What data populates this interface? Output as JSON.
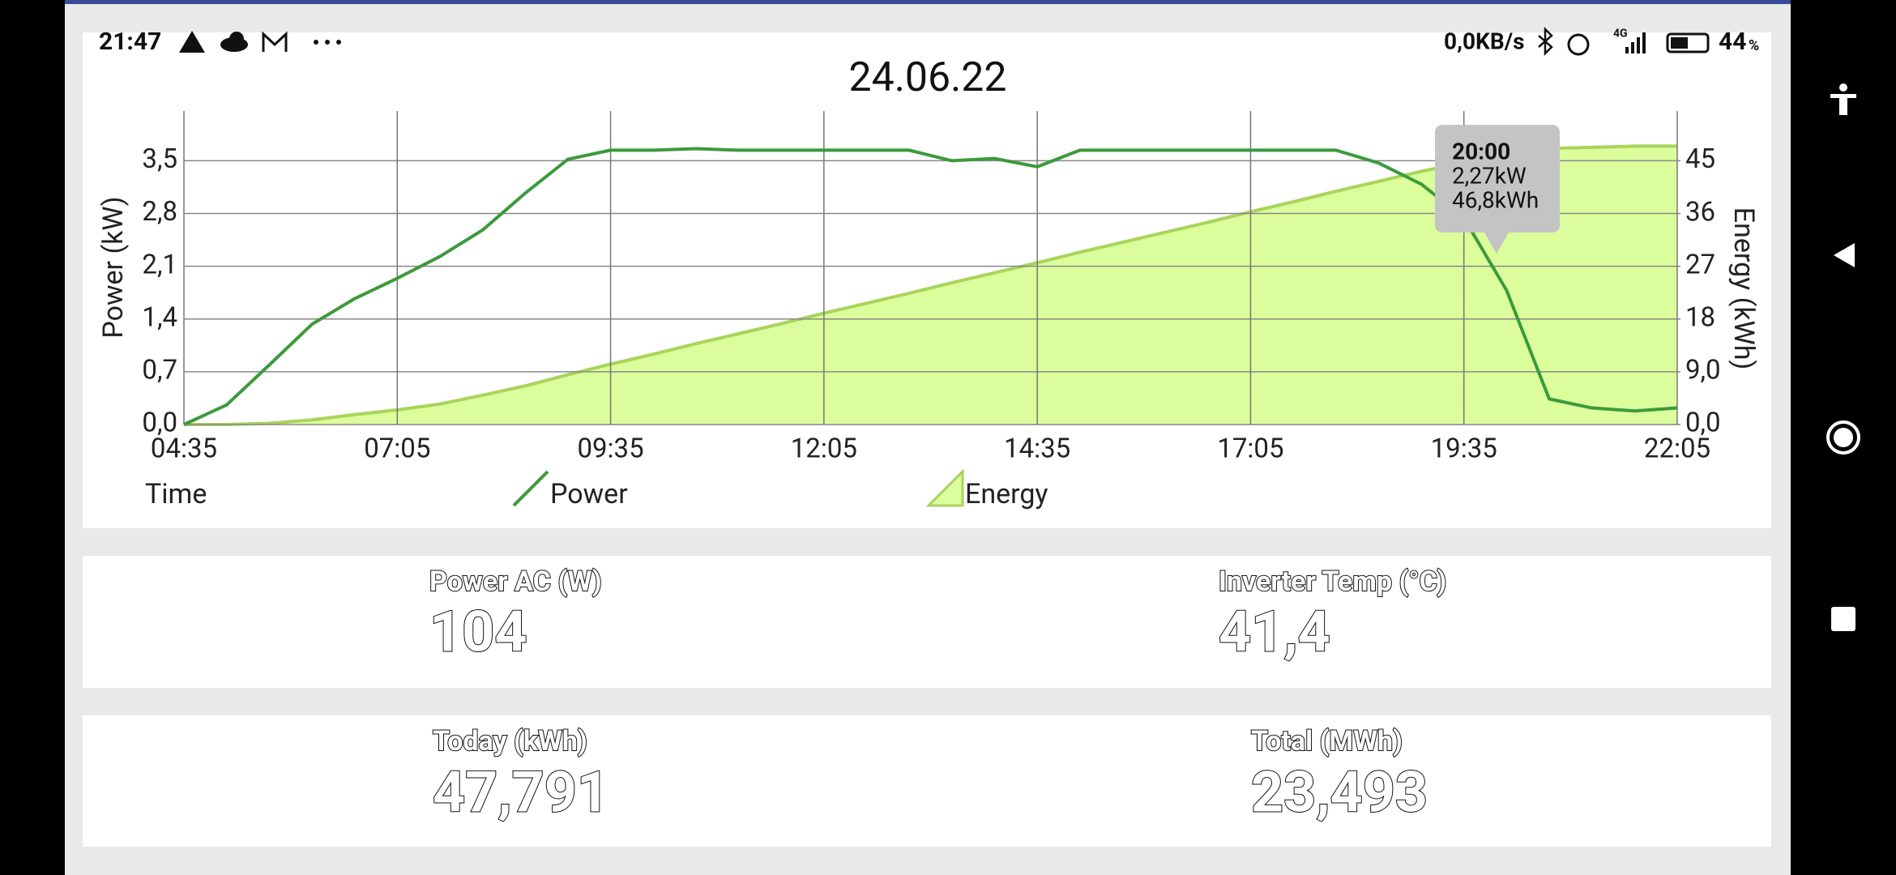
{
  "status_bar": {
    "time": "21:47",
    "network_speed": "0,0KB/s",
    "network_type": "4G",
    "battery": "44",
    "battery_unit": "%"
  },
  "chart_data": {
    "type": "line",
    "title": "24.06.22",
    "x_label": "Time",
    "y_label": "Power (kW)",
    "y2_label": "Energy (kWh)",
    "x": [
      "04:35",
      "05:05",
      "05:35",
      "06:05",
      "06:35",
      "07:05",
      "07:35",
      "08:05",
      "08:35",
      "09:05",
      "09:35",
      "10:05",
      "10:35",
      "11:05",
      "11:35",
      "12:05",
      "12:35",
      "13:05",
      "13:35",
      "14:05",
      "14:35",
      "15:05",
      "15:35",
      "16:05",
      "16:35",
      "17:05",
      "17:35",
      "18:05",
      "18:35",
      "19:05",
      "19:35",
      "20:05",
      "20:35",
      "21:05",
      "21:35",
      "22:05"
    ],
    "series": [
      {
        "name": "Power",
        "type": "line",
        "color": "#3c9a3c",
        "values": [
          0,
          0.26,
          0.79,
          1.33,
          1.67,
          1.94,
          2.23,
          2.58,
          3.07,
          3.52,
          3.64,
          3.64,
          3.66,
          3.64,
          3.64,
          3.64,
          3.64,
          3.64,
          3.5,
          3.53,
          3.42,
          3.64,
          3.64,
          3.64,
          3.64,
          3.64,
          3.64,
          3.64,
          3.47,
          3.19,
          2.74,
          1.78,
          0.34,
          0.22,
          0.18,
          0.22
        ]
      },
      {
        "name": "Energy",
        "type": "area",
        "color": "#a8d45a",
        "fill": "#dcfd9c",
        "axis": "y2",
        "values": [
          0,
          0,
          0.2,
          0.8,
          1.7,
          2.5,
          3.5,
          5.0,
          6.6,
          8.5,
          10.3,
          12.0,
          13.8,
          15.5,
          17.2,
          19.0,
          20.7,
          22.4,
          24.2,
          25.9,
          27.6,
          29.4,
          31.1,
          32.8,
          34.5,
          36.3,
          38.0,
          39.8,
          41.5,
          43.2,
          44.7,
          46.4,
          47.1,
          47.3,
          47.5,
          47.5
        ]
      }
    ],
    "xlim": [
      "04:35",
      "22:05"
    ],
    "xticks": [
      "04:35",
      "07:05",
      "09:35",
      "12:05",
      "14:35",
      "17:05",
      "19:35",
      "22:05"
    ],
    "ylim": [
      0,
      4.16
    ],
    "yticks": [
      {
        "value": 0,
        "label": "0,0"
      },
      {
        "value": 0.7,
        "label": "0,7"
      },
      {
        "value": 1.4,
        "label": "1,4"
      },
      {
        "value": 2.1,
        "label": "2,1"
      },
      {
        "value": 2.8,
        "label": "2,8"
      },
      {
        "value": 3.5,
        "label": "3,5"
      }
    ],
    "y2lim": [
      0,
      53.5
    ],
    "y2ticks": [
      {
        "value": 0,
        "label": "0,0"
      },
      {
        "value": 9,
        "label": "9,0"
      },
      18,
      27,
      36,
      45
    ],
    "grid": true,
    "tooltip": {
      "title": "20:00",
      "lines": [
        "2,27kW",
        "46,8kWh"
      ]
    }
  },
  "cards": [
    {
      "label": "Power AC (W)",
      "value": "104"
    },
    {
      "label": "Inverter Temp (°C)",
      "value": "41,4"
    },
    {
      "label": "Today (kWh)",
      "value": "47,791"
    },
    {
      "label": "Total (MWh)",
      "value": "23,493"
    }
  ]
}
